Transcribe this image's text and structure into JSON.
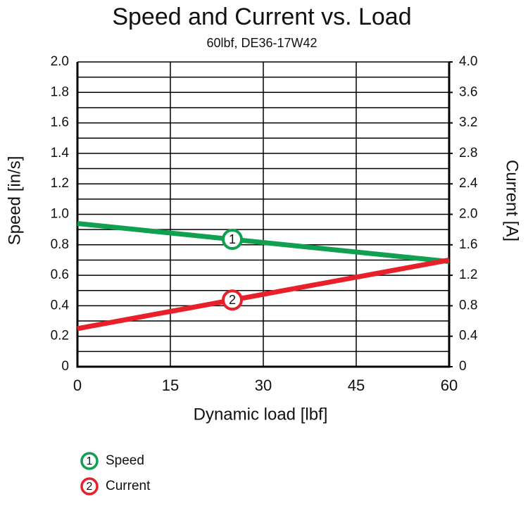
{
  "chart_data": {
    "type": "line",
    "title": "Speed and Current vs. Load",
    "subtitle": "60lbf, DE36-17W42",
    "x_label": "Dynamic load [lbf]",
    "y_label": "Speed [in/s]",
    "y2_label": "Current [A]",
    "x": [
      0,
      60
    ],
    "xlim": [
      0,
      60
    ],
    "xticks": [
      0,
      15,
      30,
      45,
      60
    ],
    "ylim": [
      0,
      2
    ],
    "yticks": [
      0,
      0.2,
      0.4,
      0.6,
      0.8,
      {
        "value": 1,
        "label": "1.0"
      },
      1.2,
      1.4,
      1.6,
      1.8,
      {
        "value": 2,
        "label": "2.0"
      }
    ],
    "minor_yticks": [
      0.1,
      0.3,
      0.5,
      0.7,
      0.9,
      1.1,
      1.3,
      1.5,
      1.7,
      1.9
    ],
    "y2lim": [
      0,
      4
    ],
    "y2ticks": [
      0,
      0.4,
      0.8,
      1.2,
      1.6,
      {
        "value": 2,
        "label": "2.0"
      },
      2.4,
      2.8,
      3.2,
      3.6,
      {
        "value": 4,
        "label": "4.0"
      }
    ],
    "grid": true,
    "marker_x": 25,
    "series": [
      {
        "name": "Speed",
        "marker": "1",
        "color": "#10a050",
        "values": [
          0.94,
          0.69
        ]
      },
      {
        "name": "Current",
        "marker": "2",
        "color": "#e8202a",
        "axis": "y2",
        "values": [
          0.5,
          1.4
        ]
      }
    ]
  }
}
